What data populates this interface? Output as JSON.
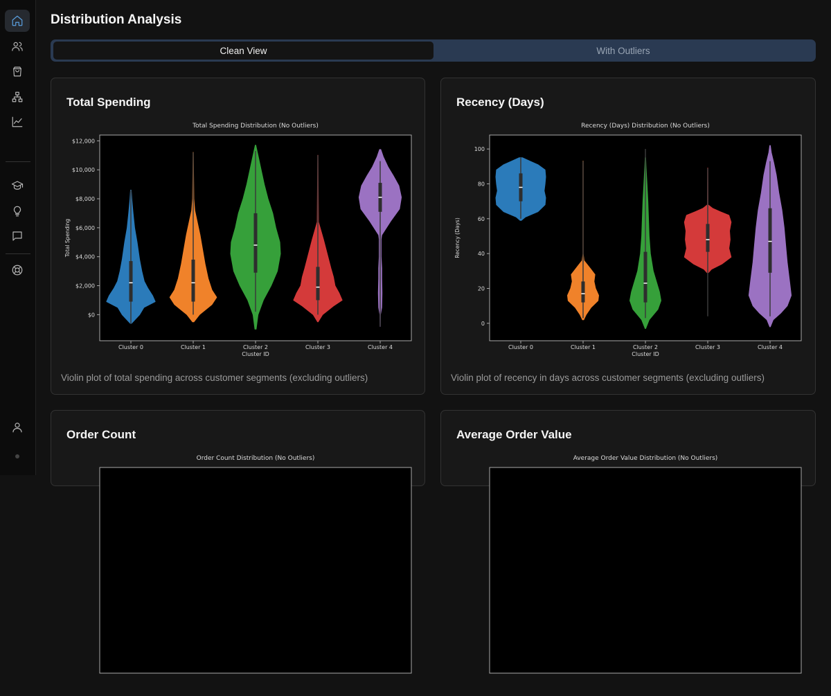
{
  "page": {
    "title": "Distribution Analysis"
  },
  "tabs": [
    {
      "label": "Clean View"
    },
    {
      "label": "With Outliers"
    }
  ],
  "icons": {
    "sidebar_top": [
      "home-icon",
      "users-icon",
      "shopping-bag-icon",
      "network-icon",
      "line-chart-icon"
    ],
    "sidebar_mid": [
      "graduation-cap-icon",
      "lightbulb-icon",
      "message-icon"
    ],
    "sidebar_help": "lifebuoy-icon",
    "sidebar_user": "user-icon"
  },
  "colors": {
    "accent": "#5aa0e0",
    "tab_bg": "#2a3a52",
    "cluster_colors": [
      "#2b7bba",
      "#f0822a",
      "#36a03a",
      "#d43a3a",
      "#9b72c2"
    ]
  },
  "cards": [
    {
      "title": "Total Spending",
      "description": "Violin plot of total spending across customer segments (excluding outliers)"
    },
    {
      "title": "Recency (Days)",
      "description": "Violin plot of recency in days across customer segments (excluding outliers)"
    },
    {
      "title": "Order Count",
      "description": ""
    },
    {
      "title": "Average Order Value",
      "description": ""
    }
  ],
  "chart_data": [
    {
      "type": "violin",
      "title": "Total Spending Distribution (No Outliers)",
      "xlabel": "Cluster ID",
      "ylabel": "Total Spending",
      "ylim": [
        -1800,
        12400
      ],
      "ytick_values": [
        0,
        2000,
        4000,
        6000,
        8000,
        10000,
        12000
      ],
      "ytick_labels": [
        "$0",
        "$2,000",
        "$4,000",
        "$6,000",
        "$8,000",
        "$10,000",
        "$12,000"
      ],
      "categories": [
        "Cluster 0",
        "Cluster 1",
        "Cluster 2",
        "Cluster 3",
        "Cluster 4"
      ],
      "series": [
        {
          "name": "Cluster 0",
          "color": "#2b7bba",
          "median": 2200,
          "q1": 900,
          "q3": 3700,
          "whisker": [
            -600,
            8600
          ],
          "shape": [
            [
              -600,
              0.02
            ],
            [
              0,
              0.28
            ],
            [
              500,
              0.42
            ],
            [
              900,
              0.78
            ],
            [
              1300,
              0.7
            ],
            [
              1800,
              0.55
            ],
            [
              2300,
              0.43
            ],
            [
              3000,
              0.35
            ],
            [
              3800,
              0.28
            ],
            [
              5000,
              0.2
            ],
            [
              6000,
              0.12
            ],
            [
              7000,
              0.07
            ],
            [
              8000,
              0.03
            ],
            [
              8600,
              0.01
            ]
          ]
        },
        {
          "name": "Cluster 1",
          "color": "#f0822a",
          "median": 2200,
          "q1": 900,
          "q3": 3800,
          "whisker": [
            0,
            11200
          ],
          "shape": [
            [
              -500,
              0.02
            ],
            [
              0,
              0.2
            ],
            [
              700,
              0.6
            ],
            [
              1200,
              0.75
            ],
            [
              1700,
              0.6
            ],
            [
              2500,
              0.48
            ],
            [
              3500,
              0.38
            ],
            [
              4500,
              0.3
            ],
            [
              5500,
              0.22
            ],
            [
              6500,
              0.12
            ],
            [
              7200,
              0.05
            ],
            [
              8000,
              0.02
            ],
            [
              11200,
              0.005
            ]
          ]
        },
        {
          "name": "Cluster 2",
          "color": "#36a03a",
          "median": 4800,
          "q1": 2900,
          "q3": 7000,
          "whisker": [
            200,
            11300
          ],
          "shape": [
            [
              -1000,
              0.02
            ],
            [
              0,
              0.08
            ],
            [
              1000,
              0.25
            ],
            [
              2000,
              0.5
            ],
            [
              3000,
              0.7
            ],
            [
              4200,
              0.8
            ],
            [
              5000,
              0.78
            ],
            [
              6000,
              0.65
            ],
            [
              7000,
              0.55
            ],
            [
              8000,
              0.4
            ],
            [
              9000,
              0.28
            ],
            [
              10000,
              0.18
            ],
            [
              11000,
              0.08
            ],
            [
              11700,
              0.01
            ]
          ]
        },
        {
          "name": "Cluster 3",
          "color": "#d43a3a",
          "median": 1900,
          "q1": 1000,
          "q3": 3300,
          "whisker": [
            0,
            11000
          ],
          "shape": [
            [
              -500,
              0.01
            ],
            [
              0,
              0.15
            ],
            [
              600,
              0.5
            ],
            [
              1000,
              0.78
            ],
            [
              1500,
              0.68
            ],
            [
              2000,
              0.55
            ],
            [
              2600,
              0.5
            ],
            [
              3200,
              0.42
            ],
            [
              4200,
              0.3
            ],
            [
              5200,
              0.18
            ],
            [
              6100,
              0.06
            ],
            [
              6400,
              0.02
            ],
            [
              11000,
              0.005
            ]
          ]
        },
        {
          "name": "Cluster 4",
          "color": "#9b72c2",
          "median": 8100,
          "q1": 7100,
          "q3": 9100,
          "whisker": [
            -800,
            10600
          ],
          "shape": [
            [
              -800,
              0.005
            ],
            [
              0,
              0.01
            ],
            [
              500,
              0.05
            ],
            [
              1500,
              0.06
            ],
            [
              2500,
              0.05
            ],
            [
              3200,
              0.05
            ],
            [
              4000,
              0.03
            ],
            [
              5200,
              0.03
            ],
            [
              5500,
              0.05
            ],
            [
              6500,
              0.35
            ],
            [
              7300,
              0.62
            ],
            [
              8100,
              0.68
            ],
            [
              8900,
              0.6
            ],
            [
              9600,
              0.42
            ],
            [
              10200,
              0.25
            ],
            [
              10900,
              0.1
            ],
            [
              11400,
              0.02
            ]
          ]
        }
      ]
    },
    {
      "type": "violin",
      "title": "Recency (Days) Distribution (No Outliers)",
      "xlabel": "Cluster ID",
      "ylabel": "Recency (Days)",
      "ylim": [
        -10,
        108
      ],
      "ytick_values": [
        0,
        20,
        40,
        60,
        80,
        100
      ],
      "ytick_labels": [
        "0",
        "20",
        "40",
        "60",
        "80",
        "100"
      ],
      "categories": [
        "Cluster 0",
        "Cluster 1",
        "Cluster 2",
        "Cluster 3",
        "Cluster 4"
      ],
      "series": [
        {
          "name": "Cluster 0",
          "color": "#2b7bba",
          "median": 78,
          "q1": 70,
          "q3": 86,
          "whisker": [
            60,
            95
          ],
          "shape": [
            [
              59,
              0.02
            ],
            [
              61,
              0.15
            ],
            [
              64,
              0.55
            ],
            [
              68,
              0.78
            ],
            [
              72,
              0.8
            ],
            [
              76,
              0.75
            ],
            [
              80,
              0.78
            ],
            [
              84,
              0.8
            ],
            [
              88,
              0.78
            ],
            [
              91,
              0.55
            ],
            [
              93,
              0.3
            ],
            [
              95,
              0.05
            ]
          ]
        },
        {
          "name": "Cluster 1",
          "color": "#f0822a",
          "median": 17,
          "q1": 12,
          "q3": 24,
          "whisker": [
            3,
            93
          ],
          "shape": [
            [
              2,
              0.02
            ],
            [
              5,
              0.1
            ],
            [
              9,
              0.25
            ],
            [
              13,
              0.48
            ],
            [
              16,
              0.5
            ],
            [
              20,
              0.4
            ],
            [
              24,
              0.35
            ],
            [
              28,
              0.38
            ],
            [
              31,
              0.25
            ],
            [
              34,
              0.12
            ],
            [
              36,
              0.03
            ],
            [
              40,
              0.005
            ],
            [
              93,
              0.005
            ]
          ]
        },
        {
          "name": "Cluster 2",
          "color": "#36a03a",
          "median": 23,
          "q1": 12,
          "q3": 41,
          "whisker": [
            3,
            100
          ],
          "shape": [
            [
              -3,
              0.01
            ],
            [
              2,
              0.12
            ],
            [
              8,
              0.4
            ],
            [
              13,
              0.5
            ],
            [
              18,
              0.45
            ],
            [
              24,
              0.35
            ],
            [
              30,
              0.25
            ],
            [
              40,
              0.16
            ],
            [
              50,
              0.12
            ],
            [
              60,
              0.1
            ],
            [
              70,
              0.08
            ],
            [
              80,
              0.05
            ],
            [
              90,
              0.02
            ],
            [
              95,
              0.01
            ]
          ]
        },
        {
          "name": "Cluster 3",
          "color": "#d43a3a",
          "median": 48,
          "q1": 41,
          "q3": 57,
          "whisker": [
            4,
            89
          ],
          "shape": [
            [
              29,
              0.02
            ],
            [
              31,
              0.12
            ],
            [
              34,
              0.45
            ],
            [
              38,
              0.75
            ],
            [
              43,
              0.68
            ],
            [
              48,
              0.72
            ],
            [
              53,
              0.7
            ],
            [
              58,
              0.75
            ],
            [
              62,
              0.68
            ],
            [
              64,
              0.4
            ],
            [
              66,
              0.15
            ],
            [
              68,
              0.01
            ],
            [
              89,
              0.005
            ]
          ]
        },
        {
          "name": "Cluster 4",
          "color": "#9b72c2",
          "median": 47,
          "q1": 29,
          "q3": 66,
          "whisker": [
            4,
            93
          ],
          "shape": [
            [
              -2,
              0.01
            ],
            [
              2,
              0.1
            ],
            [
              6,
              0.35
            ],
            [
              10,
              0.55
            ],
            [
              16,
              0.68
            ],
            [
              25,
              0.62
            ],
            [
              35,
              0.55
            ],
            [
              45,
              0.5
            ],
            [
              55,
              0.45
            ],
            [
              65,
              0.38
            ],
            [
              75,
              0.28
            ],
            [
              85,
              0.2
            ],
            [
              92,
              0.12
            ],
            [
              98,
              0.04
            ],
            [
              102,
              0.01
            ]
          ]
        }
      ]
    },
    {
      "type": "violin",
      "title": "Order Count Distribution (No Outliers)"
    },
    {
      "type": "violin",
      "title": "Average Order Value Distribution (No Outliers)"
    }
  ]
}
